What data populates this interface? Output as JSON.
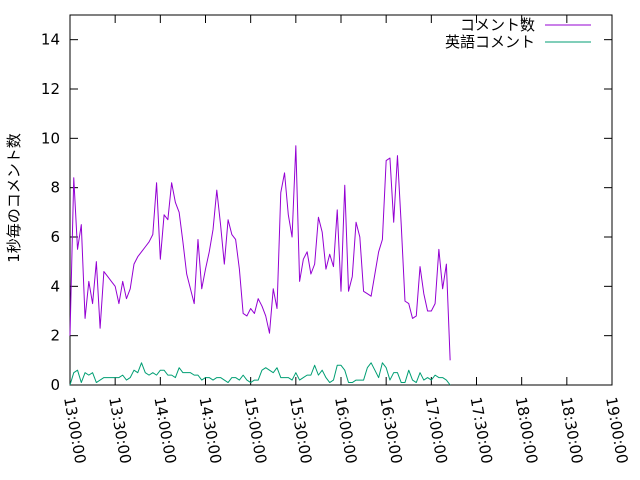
{
  "chart_data": {
    "type": "line",
    "title": "",
    "xlabel": "",
    "ylabel": "1秒毎のコメント数",
    "ylim": [
      0,
      15
    ],
    "xlim": [
      "13:00:00",
      "19:00:00"
    ],
    "y_ticks": [
      0,
      2,
      4,
      6,
      8,
      10,
      12,
      14
    ],
    "x_ticks": [
      "13:00:00",
      "13:30:00",
      "14:00:00",
      "14:30:00",
      "15:00:00",
      "15:30:00",
      "16:00:00",
      "16:30:00",
      "17:00:00",
      "17:30:00",
      "18:00:00",
      "18:30:00",
      "19:00:00"
    ],
    "grid": false,
    "legend_position": "top-right",
    "series": [
      {
        "name": "コメント数",
        "color": "#9400d3",
        "points": [
          [
            "13:00:00",
            2.0
          ],
          [
            "13:02:30",
            8.4
          ],
          [
            "13:05:00",
            5.5
          ],
          [
            "13:07:30",
            6.5
          ],
          [
            "13:10:00",
            2.7
          ],
          [
            "13:12:30",
            4.2
          ],
          [
            "13:15:00",
            3.3
          ],
          [
            "13:17:30",
            5.0
          ],
          [
            "13:20:00",
            2.3
          ],
          [
            "13:22:30",
            4.6
          ],
          [
            "13:25:00",
            4.4
          ],
          [
            "13:27:30",
            4.2
          ],
          [
            "13:30:00",
            4.0
          ],
          [
            "13:32:30",
            3.3
          ],
          [
            "13:35:00",
            4.2
          ],
          [
            "13:37:30",
            3.5
          ],
          [
            "13:40:00",
            3.9
          ],
          [
            "13:42:30",
            4.9
          ],
          [
            "13:45:00",
            5.2
          ],
          [
            "13:47:30",
            5.4
          ],
          [
            "13:50:00",
            5.6
          ],
          [
            "13:52:30",
            5.8
          ],
          [
            "13:55:00",
            6.1
          ],
          [
            "13:57:30",
            8.2
          ],
          [
            "14:00:00",
            5.1
          ],
          [
            "14:02:30",
            6.9
          ],
          [
            "14:05:00",
            6.7
          ],
          [
            "14:07:30",
            8.2
          ],
          [
            "14:10:00",
            7.4
          ],
          [
            "14:12:30",
            7.0
          ],
          [
            "14:15:00",
            5.8
          ],
          [
            "14:17:30",
            4.5
          ],
          [
            "14:20:00",
            3.9
          ],
          [
            "14:22:30",
            3.3
          ],
          [
            "14:25:00",
            5.9
          ],
          [
            "14:27:30",
            3.9
          ],
          [
            "14:30:00",
            4.7
          ],
          [
            "14:32:30",
            5.4
          ],
          [
            "14:35:00",
            6.3
          ],
          [
            "14:37:30",
            7.9
          ],
          [
            "14:40:00",
            6.5
          ],
          [
            "14:42:30",
            4.9
          ],
          [
            "14:45:00",
            6.7
          ],
          [
            "14:47:30",
            6.1
          ],
          [
            "14:50:00",
            5.9
          ],
          [
            "14:52:30",
            4.7
          ],
          [
            "14:55:00",
            2.9
          ],
          [
            "14:57:30",
            2.8
          ],
          [
            "15:00:00",
            3.1
          ],
          [
            "15:02:30",
            2.9
          ],
          [
            "15:05:00",
            3.5
          ],
          [
            "15:07:30",
            3.2
          ],
          [
            "15:10:00",
            2.8
          ],
          [
            "15:12:30",
            2.1
          ],
          [
            "15:15:00",
            3.9
          ],
          [
            "15:17:30",
            3.1
          ],
          [
            "15:20:00",
            7.8
          ],
          [
            "15:22:30",
            8.6
          ],
          [
            "15:25:00",
            6.9
          ],
          [
            "15:27:30",
            6.0
          ],
          [
            "15:30:00",
            9.7
          ],
          [
            "15:32:30",
            4.2
          ],
          [
            "15:35:00",
            5.1
          ],
          [
            "15:37:30",
            5.4
          ],
          [
            "15:40:00",
            4.5
          ],
          [
            "15:42:30",
            4.9
          ],
          [
            "15:45:00",
            6.8
          ],
          [
            "15:47:30",
            6.2
          ],
          [
            "15:50:00",
            4.7
          ],
          [
            "15:52:30",
            5.3
          ],
          [
            "15:55:00",
            4.8
          ],
          [
            "15:57:30",
            7.1
          ],
          [
            "16:00:00",
            3.8
          ],
          [
            "16:02:30",
            8.1
          ],
          [
            "16:05:00",
            3.8
          ],
          [
            "16:07:30",
            4.4
          ],
          [
            "16:10:00",
            6.6
          ],
          [
            "16:12:30",
            6.0
          ],
          [
            "16:15:00",
            3.8
          ],
          [
            "16:17:30",
            3.7
          ],
          [
            "16:20:00",
            3.6
          ],
          [
            "16:22:30",
            4.5
          ],
          [
            "16:25:00",
            5.4
          ],
          [
            "16:27:30",
            5.9
          ],
          [
            "16:30:00",
            9.1
          ],
          [
            "16:32:30",
            9.2
          ],
          [
            "16:35:00",
            6.6
          ],
          [
            "16:37:30",
            9.3
          ],
          [
            "16:40:00",
            6.5
          ],
          [
            "16:42:30",
            3.4
          ],
          [
            "16:45:00",
            3.3
          ],
          [
            "16:47:30",
            2.7
          ],
          [
            "16:50:00",
            2.8
          ],
          [
            "16:52:30",
            4.8
          ],
          [
            "16:55:00",
            3.7
          ],
          [
            "16:57:30",
            3.0
          ],
          [
            "17:00:00",
            3.0
          ],
          [
            "17:02:30",
            3.3
          ],
          [
            "17:05:00",
            5.5
          ],
          [
            "17:07:30",
            3.9
          ],
          [
            "17:10:00",
            4.9
          ],
          [
            "17:12:30",
            1.0
          ]
        ]
      },
      {
        "name": "英語コメント",
        "color": "#009e73",
        "points": [
          [
            "13:00:00",
            0.0
          ],
          [
            "13:02:30",
            0.5
          ],
          [
            "13:05:00",
            0.6
          ],
          [
            "13:07:30",
            0.1
          ],
          [
            "13:10:00",
            0.5
          ],
          [
            "13:12:30",
            0.4
          ],
          [
            "13:15:00",
            0.5
          ],
          [
            "13:17:30",
            0.1
          ],
          [
            "13:20:00",
            0.2
          ],
          [
            "13:22:30",
            0.3
          ],
          [
            "13:25:00",
            0.3
          ],
          [
            "13:27:30",
            0.3
          ],
          [
            "13:30:00",
            0.3
          ],
          [
            "13:32:30",
            0.3
          ],
          [
            "13:35:00",
            0.4
          ],
          [
            "13:37:30",
            0.2
          ],
          [
            "13:40:00",
            0.3
          ],
          [
            "13:42:30",
            0.6
          ],
          [
            "13:45:00",
            0.5
          ],
          [
            "13:47:30",
            0.9
          ],
          [
            "13:50:00",
            0.5
          ],
          [
            "13:52:30",
            0.4
          ],
          [
            "13:55:00",
            0.5
          ],
          [
            "13:57:30",
            0.4
          ],
          [
            "14:00:00",
            0.6
          ],
          [
            "14:02:30",
            0.6
          ],
          [
            "14:05:00",
            0.4
          ],
          [
            "14:07:30",
            0.4
          ],
          [
            "14:10:00",
            0.3
          ],
          [
            "14:12:30",
            0.7
          ],
          [
            "14:15:00",
            0.5
          ],
          [
            "14:17:30",
            0.5
          ],
          [
            "14:20:00",
            0.5
          ],
          [
            "14:22:30",
            0.4
          ],
          [
            "14:25:00",
            0.4
          ],
          [
            "14:27:30",
            0.2
          ],
          [
            "14:30:00",
            0.3
          ],
          [
            "14:32:30",
            0.3
          ],
          [
            "14:35:00",
            0.2
          ],
          [
            "14:37:30",
            0.3
          ],
          [
            "14:40:00",
            0.3
          ],
          [
            "14:42:30",
            0.2
          ],
          [
            "14:45:00",
            0.1
          ],
          [
            "14:47:30",
            0.3
          ],
          [
            "14:50:00",
            0.3
          ],
          [
            "14:52:30",
            0.2
          ],
          [
            "14:55:00",
            0.4
          ],
          [
            "14:57:30",
            0.2
          ],
          [
            "15:00:00",
            0.1
          ],
          [
            "15:02:30",
            0.2
          ],
          [
            "15:05:00",
            0.2
          ],
          [
            "15:07:30",
            0.6
          ],
          [
            "15:10:00",
            0.7
          ],
          [
            "15:12:30",
            0.6
          ],
          [
            "15:15:00",
            0.5
          ],
          [
            "15:17:30",
            0.7
          ],
          [
            "15:20:00",
            0.3
          ],
          [
            "15:22:30",
            0.3
          ],
          [
            "15:25:00",
            0.3
          ],
          [
            "15:27:30",
            0.2
          ],
          [
            "15:30:00",
            0.5
          ],
          [
            "15:32:30",
            0.2
          ],
          [
            "15:35:00",
            0.3
          ],
          [
            "15:37:30",
            0.4
          ],
          [
            "15:40:00",
            0.4
          ],
          [
            "15:42:30",
            0.8
          ],
          [
            "15:45:00",
            0.4
          ],
          [
            "15:47:30",
            0.6
          ],
          [
            "15:50:00",
            0.3
          ],
          [
            "15:52:30",
            0.1
          ],
          [
            "15:55:00",
            0.2
          ],
          [
            "15:57:30",
            0.8
          ],
          [
            "16:00:00",
            0.8
          ],
          [
            "16:02:30",
            0.6
          ],
          [
            "16:05:00",
            0.1
          ],
          [
            "16:07:30",
            0.1
          ],
          [
            "16:10:00",
            0.2
          ],
          [
            "16:12:30",
            0.2
          ],
          [
            "16:15:00",
            0.2
          ],
          [
            "16:17:30",
            0.7
          ],
          [
            "16:20:00",
            0.9
          ],
          [
            "16:22:30",
            0.6
          ],
          [
            "16:25:00",
            0.3
          ],
          [
            "16:27:30",
            0.9
          ],
          [
            "16:30:00",
            0.7
          ],
          [
            "16:32:30",
            0.2
          ],
          [
            "16:35:00",
            0.5
          ],
          [
            "16:37:30",
            0.5
          ],
          [
            "16:40:00",
            0.1
          ],
          [
            "16:42:30",
            0.1
          ],
          [
            "16:45:00",
            0.6
          ],
          [
            "16:47:30",
            0.2
          ],
          [
            "16:50:00",
            0.1
          ],
          [
            "16:52:30",
            0.5
          ],
          [
            "16:55:00",
            0.2
          ],
          [
            "16:57:30",
            0.3
          ],
          [
            "17:00:00",
            0.2
          ],
          [
            "17:02:30",
            0.4
          ],
          [
            "17:05:00",
            0.3
          ],
          [
            "17:07:30",
            0.3
          ],
          [
            "17:10:00",
            0.2
          ],
          [
            "17:12:30",
            0.0
          ]
        ]
      }
    ]
  }
}
